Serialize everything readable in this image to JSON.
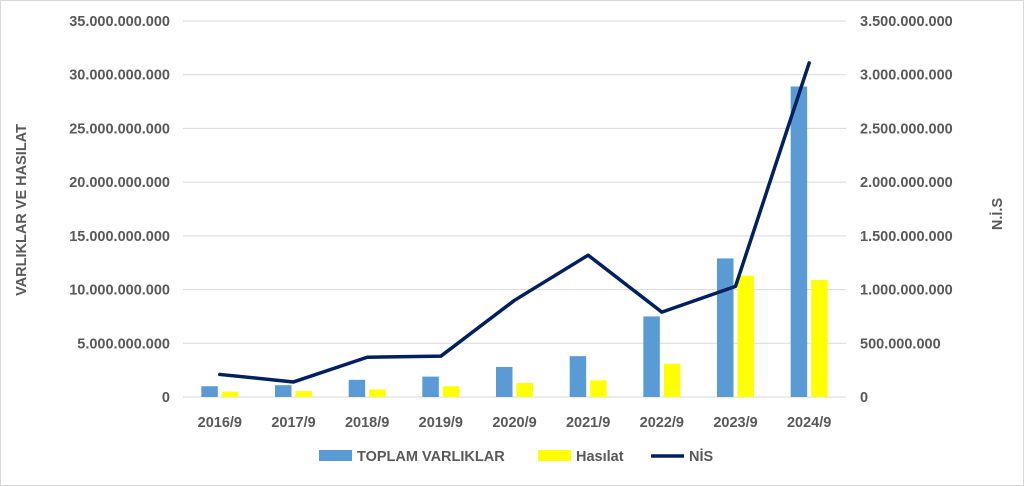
{
  "chart_data": {
    "type": "bar",
    "categories": [
      "2016/9",
      "2017/9",
      "2018/9",
      "2019/9",
      "2020/9",
      "2021/9",
      "2022/9",
      "2023/9",
      "2024/9"
    ],
    "series": [
      {
        "name": "TOPLAM VARLIKLAR",
        "type": "bar",
        "axis": "left",
        "color": "#5b9bd5",
        "values": [
          1000000000,
          1100000000,
          1600000000,
          1900000000,
          2800000000,
          3800000000,
          7500000000,
          12900000000,
          28900000000
        ]
      },
      {
        "name": "Hasılat",
        "type": "bar",
        "axis": "left",
        "color": "#ffff00",
        "values": [
          500000000,
          550000000,
          700000000,
          1000000000,
          1300000000,
          1550000000,
          3100000000,
          11300000000,
          10900000000
        ]
      },
      {
        "name": "NİS",
        "type": "line",
        "axis": "right",
        "color": "#002060",
        "values": [
          210000000,
          140000000,
          370000000,
          380000000,
          900000000,
          1320000000,
          790000000,
          1030000000,
          3110000000
        ]
      }
    ],
    "ylabel": "VARLIKLAR VE HASILAT",
    "ylabel_right": "N.İ.S",
    "ylim": [
      0,
      35000000000
    ],
    "ylim_right": [
      0,
      3500000000
    ],
    "yticks": [
      "0",
      "5.000.000.000",
      "10.000.000.000",
      "15.000.000.000",
      "20.000.000.000",
      "25.000.000.000",
      "30.000.000.000",
      "35.000.000.000"
    ],
    "yticks_right": [
      "0",
      "500.000.000",
      "1.000.000.000",
      "1.500.000.000",
      "2.000.000.000",
      "2.500.000.000",
      "3.000.000.000",
      "3.500.000.000"
    ],
    "grid": true,
    "legend_position": "bottom",
    "colors": {
      "grid": "#d9d9d9",
      "text": "#595959"
    }
  }
}
